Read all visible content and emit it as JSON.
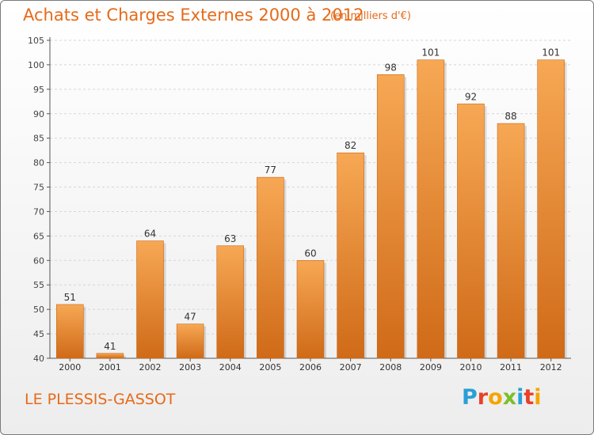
{
  "title": "Achats et Charges Externes 2000 à 2012",
  "subtitle": "(en milliers d'€)",
  "commune": "LE PLESSIS-GASSOT",
  "logo": {
    "text": "Proxiti",
    "colors": [
      "#2a9fd6",
      "#e8402a",
      "#f5a400",
      "#7bbf2a",
      "#2a9fd6",
      "#e8402a",
      "#f5a400"
    ]
  },
  "colors": {
    "accent": "#e66a1a",
    "bar_top": "#f7a854",
    "bar_bottom": "#cf6a18"
  },
  "chart_data": {
    "type": "bar",
    "categories": [
      "2000",
      "2001",
      "2002",
      "2003",
      "2004",
      "2005",
      "2006",
      "2007",
      "2008",
      "2009",
      "2010",
      "2011",
      "2012"
    ],
    "values": [
      51,
      41,
      64,
      47,
      63,
      77,
      60,
      82,
      98,
      101,
      92,
      88,
      101
    ],
    "value_labels": [
      "51",
      "41",
      "64",
      "47",
      "63",
      "77",
      "60",
      "82",
      "98",
      "101",
      "92",
      "88",
      "101"
    ],
    "ylim": [
      40,
      105
    ],
    "yticks": [
      40,
      45,
      50,
      55,
      60,
      65,
      70,
      75,
      80,
      85,
      90,
      95,
      100,
      105
    ],
    "grid": true
  }
}
